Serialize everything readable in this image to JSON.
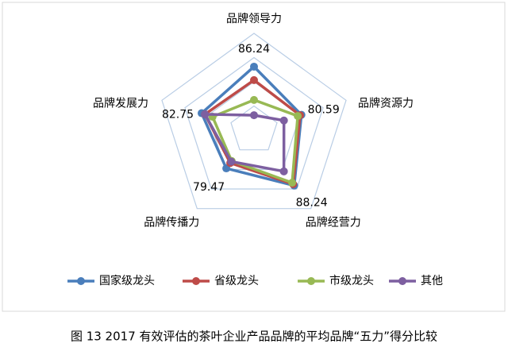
{
  "chart_data": {
    "type": "radar",
    "categories": [
      "品牌领导力",
      "品牌资源力",
      "品牌经营力",
      "品牌传播力",
      "品牌发展力"
    ],
    "ylim": [
      60,
      100
    ],
    "yticks": [
      60,
      70,
      80,
      90,
      100
    ],
    "grid": true,
    "series": [
      {
        "name": "国家级龙头",
        "color": "#4a7ebb",
        "values": [
          86.24,
          80.59,
          88.24,
          79.47,
          82.75
        ],
        "show_labels": true
      },
      {
        "name": "省级龙头",
        "color": "#be4b48",
        "values": [
          80.7,
          80,
          87.5,
          76.7,
          81.3
        ],
        "show_labels": false
      },
      {
        "name": "市级龙头",
        "color": "#98b954",
        "values": [
          72.5,
          79,
          86.8,
          75.7,
          78
        ],
        "show_labels": false
      },
      {
        "name": "其他",
        "color": "#7d5fa0",
        "values": [
          66.2,
          73,
          81,
          76,
          81.3
        ],
        "show_labels": false
      }
    ]
  },
  "caption": "图 13    2017 有效评估的茶叶企业产品品牌的平均品牌“五力”得分比较"
}
